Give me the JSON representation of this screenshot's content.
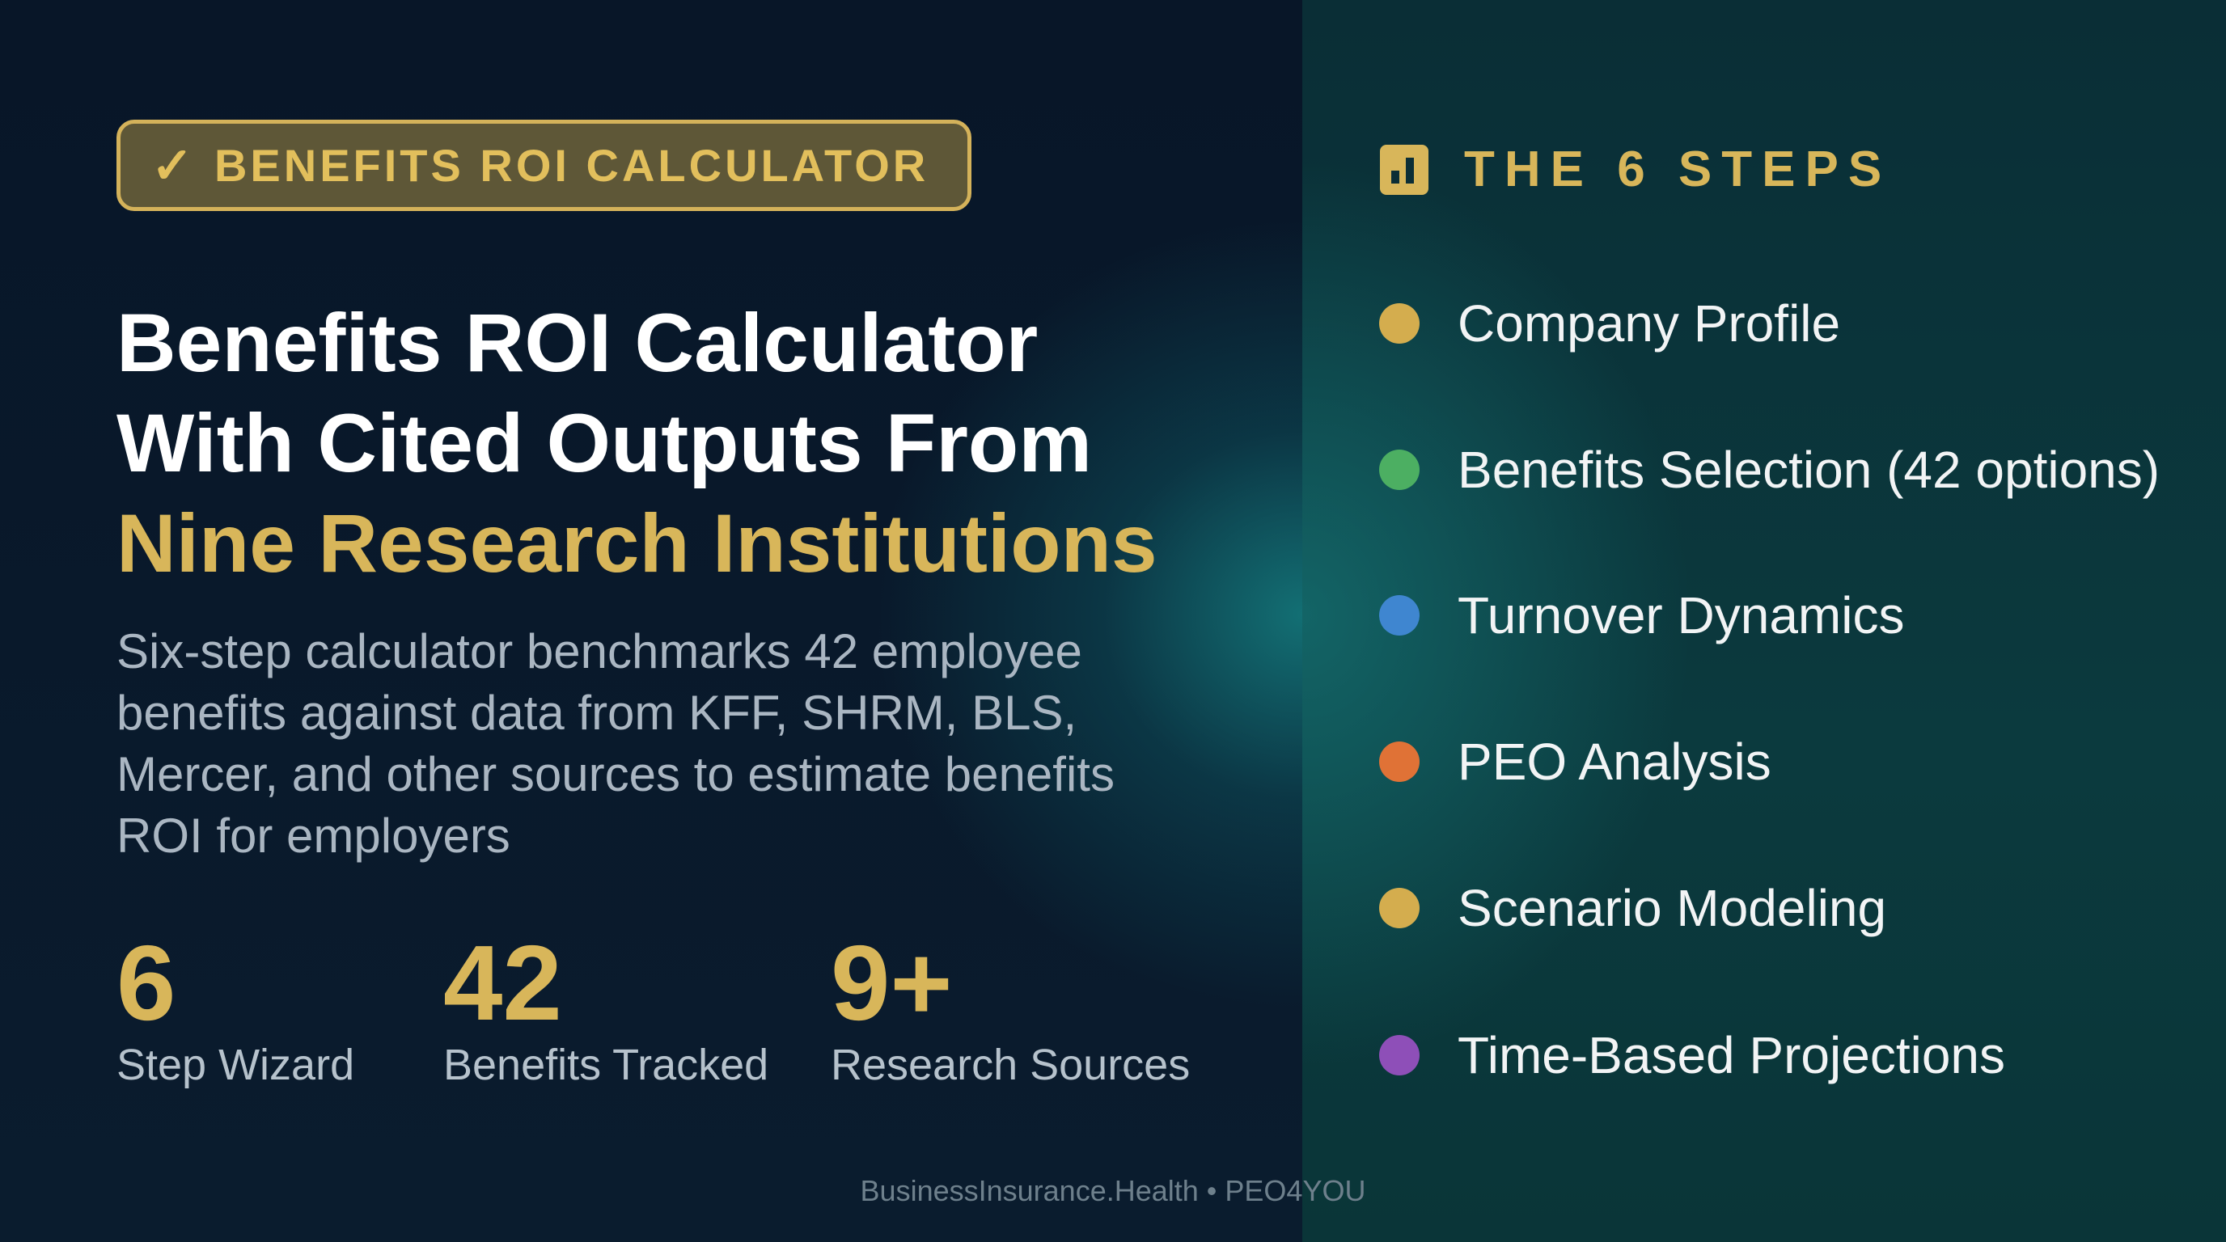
{
  "badge": {
    "icon": "check-icon",
    "label": "BENEFITS ROI CALCULATOR"
  },
  "title": {
    "line1": "Benefits ROI Calculator",
    "line2": "With Cited Outputs From",
    "line3_highlight": "Nine Research Institutions"
  },
  "subtitle": "Six-step calculator benchmarks 42 employee benefits against data from KFF, SHRM, BLS, Mercer, and other sources to estimate benefits ROI for employers",
  "stats": [
    {
      "value": "6",
      "label": "Step Wizard"
    },
    {
      "value": "42",
      "label": "Benefits Tracked"
    },
    {
      "value": "9+",
      "label": "Research Sources"
    }
  ],
  "steps": {
    "icon": "bar-chart-icon",
    "heading": "THE 6 STEPS",
    "items": [
      {
        "label": "Company Profile",
        "color": "#d4ad4e"
      },
      {
        "label": "Benefits Selection (42 options)",
        "color": "#4caf62"
      },
      {
        "label": "Turnover Dynamics",
        "color": "#3f86d0"
      },
      {
        "label": "PEO Analysis",
        "color": "#e07236"
      },
      {
        "label": "Scenario Modeling",
        "color": "#d4ad4e"
      },
      {
        "label": "Time-Based Projections",
        "color": "#8e4fb8"
      }
    ]
  },
  "footer": "BusinessInsurance.Health • PEO4YOU",
  "colors": {
    "gold": "#d8b65a",
    "left_bg": "#081728",
    "right_bg": "#0a3338"
  }
}
